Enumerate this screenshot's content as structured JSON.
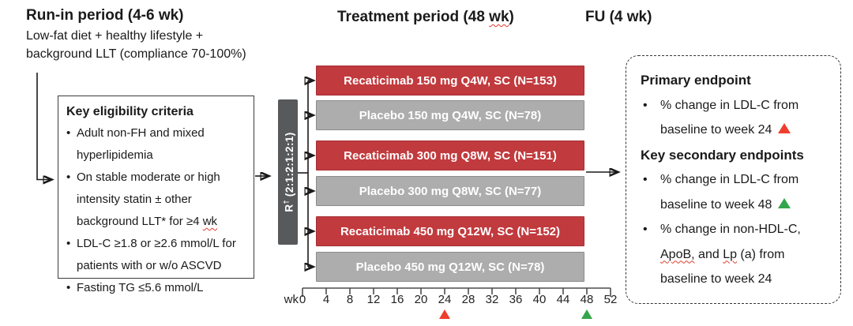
{
  "colors": {
    "active_arm": "#c13a3e",
    "placebo_arm": "#adadad",
    "randomization_bar": "#58595b",
    "marker_red": "#ee3e2d",
    "marker_green": "#33a64c"
  },
  "phases": {
    "run_in": {
      "title": "Run-in period (4-6 wk)",
      "subtitle_lines": [
        "Low-fat diet + healthy lifestyle +",
        "background LLT (compliance 70-100%)"
      ]
    },
    "treatment": {
      "pre": "Treatment period (48 ",
      "squiggle": "wk",
      "post": ")"
    },
    "followup": {
      "title": "FU (4 wk)"
    }
  },
  "eligibility": {
    "title": "Key eligibility criteria",
    "bullet_glyph": "•",
    "bullets": [
      {
        "lines": [
          "Adult non-FH and mixed",
          "hyperlipidemia"
        ]
      },
      {
        "lines": [
          "On stable moderate or high",
          "intensity statin ± other",
          [
            {
              "t": "background LLT* for ≥4 "
            },
            {
              "t": "wk",
              "sq": true
            }
          ]
        ]
      },
      {
        "lines": [
          "LDL-C ≥1.8 or ≥2.6 mmol/L for",
          "patients with or w/o ASCVD"
        ]
      },
      {
        "lines": [
          "Fasting TG ≤5.6 mmol/L"
        ]
      }
    ]
  },
  "randomization": {
    "r": "R",
    "sup": "†",
    "ratio": "(2:1:2:1:2:1)"
  },
  "arms": [
    {
      "label": "Recaticimab 150 mg Q4W, SC (N=153)",
      "kind": "active"
    },
    {
      "label": "Placebo 150 mg Q4W, SC (N=78)",
      "kind": "placebo"
    },
    {
      "label": "Recaticimab 300 mg Q8W, SC (N=151)",
      "kind": "active"
    },
    {
      "label": "Placebo 300 mg Q8W, SC (N=77)",
      "kind": "placebo"
    },
    {
      "label": "Recaticimab 450 mg Q12W, SC (N=152)",
      "kind": "active"
    },
    {
      "label": "Placebo 450 mg Q12W, SC (N=78)",
      "kind": "placebo"
    }
  ],
  "axis": {
    "unit_label": "wk",
    "ticks": [
      0,
      4,
      8,
      12,
      16,
      20,
      24,
      28,
      32,
      36,
      40,
      44,
      48,
      52
    ],
    "markers": [
      {
        "week": 24,
        "color": "#ee3e2d",
        "name": "primary-endpoint-marker-week-24"
      },
      {
        "week": 48,
        "color": "#33a64c",
        "name": "secondary-endpoint-marker-week-48"
      }
    ]
  },
  "endpoints": {
    "primary_title": "Primary endpoint",
    "primary_bullets": [
      {
        "lines": [
          "% change in LDL-C from",
          [
            {
              "t": "baseline to week 24 "
            },
            {
              "tri": "#ee3e2d"
            }
          ]
        ]
      }
    ],
    "secondary_title": "Key secondary endpoints",
    "secondary_bullets": [
      {
        "lines": [
          "% change in LDL-C from",
          [
            {
              "t": "baseline to week 48 "
            },
            {
              "tri": "#33a64c"
            }
          ]
        ]
      },
      {
        "lines": [
          [
            {
              "t": "% change in non-HDL-C,"
            }
          ],
          [
            {
              "t": "ApoB,",
              "sq": true
            },
            {
              "t": " and "
            },
            {
              "t": "Lp",
              "sq": true
            },
            {
              "t": " (a) from"
            }
          ],
          [
            {
              "t": "baseline to week 24"
            }
          ]
        ]
      }
    ]
  }
}
